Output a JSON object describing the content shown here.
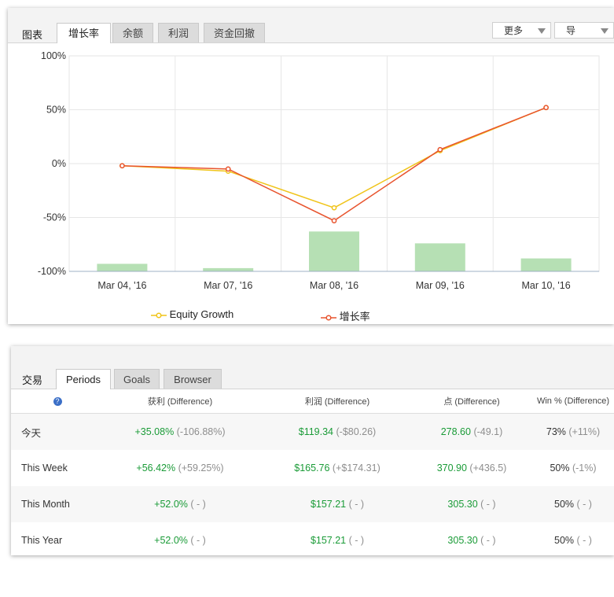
{
  "chart_panel": {
    "title": "图表",
    "tabs": [
      {
        "label": "增长率",
        "active": true
      },
      {
        "label": "余额",
        "active": false
      },
      {
        "label": "利润",
        "active": false
      },
      {
        "label": "资金回撤",
        "active": false
      }
    ],
    "more_label": "更多",
    "export_label": "导"
  },
  "chart_data": {
    "type": "line",
    "categories": [
      "Mar 04, '16",
      "Mar 07, '16",
      "Mar 08, '16",
      "Mar 09, '16",
      "Mar 10, '16"
    ],
    "series": [
      {
        "name": "Equity Growth",
        "type": "line",
        "color": "#f0c419",
        "values": [
          -2,
          -7,
          -41,
          12,
          52
        ]
      },
      {
        "name": "增长率",
        "type": "line",
        "color": "#e8542e",
        "values": [
          -2,
          -5,
          -53,
          13,
          52
        ]
      },
      {
        "type": "bar",
        "color": "#b6e0b4",
        "values": [
          -93,
          -97,
          -63,
          -74,
          -88
        ]
      }
    ],
    "y_ticks": [
      "100%",
      "50%",
      "0%",
      "-50%",
      "-100%"
    ],
    "ylim": [
      -100,
      100
    ],
    "grid": true,
    "legend_position": "bottom"
  },
  "trade_panel": {
    "title": "交易",
    "tabs": [
      {
        "label": "Periods",
        "active": true
      },
      {
        "label": "Goals",
        "active": false
      },
      {
        "label": "Browser",
        "active": false
      }
    ],
    "headers": {
      "help": "?",
      "profit": "获利 (Difference)",
      "pl": "利润 (Difference)",
      "pips": "点 (Difference)",
      "win": "Win % (Difference)"
    },
    "rows": [
      {
        "period": "今天",
        "profit": "+35.08%",
        "profit_diff": "(-106.88%)",
        "pl": "$119.34",
        "pl_diff": "(-$80.26)",
        "pips": "278.60",
        "pips_diff": "(-49.1)",
        "win": "73%",
        "win_diff": "(+11%)"
      },
      {
        "period": "This Week",
        "profit": "+56.42%",
        "profit_diff": "(+59.25%)",
        "pl": "$165.76",
        "pl_diff": "(+$174.31)",
        "pips": "370.90",
        "pips_diff": "(+436.5)",
        "win": "50%",
        "win_diff": "(-1%)"
      },
      {
        "period": "This Month",
        "profit": "+52.0%",
        "profit_diff": "( - )",
        "pl": "$157.21",
        "pl_diff": "( - )",
        "pips": "305.30",
        "pips_diff": "( - )",
        "win": "50%",
        "win_diff": "( - )"
      },
      {
        "period": "This Year",
        "profit": "+52.0%",
        "profit_diff": "( - )",
        "pl": "$157.21",
        "pl_diff": "( - )",
        "pips": "305.30",
        "pips_diff": "( - )",
        "win": "50%",
        "win_diff": "( - )"
      }
    ]
  }
}
